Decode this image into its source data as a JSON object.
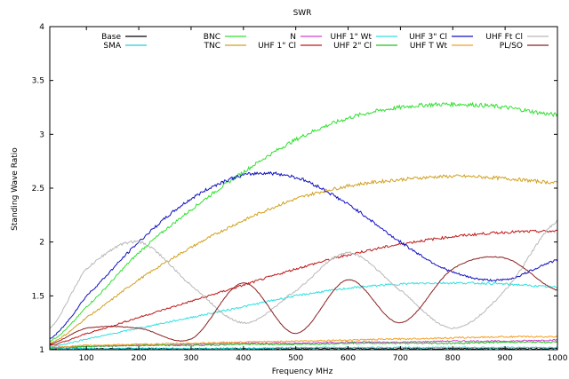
{
  "chart_data": {
    "type": "line",
    "title": "SWR",
    "xlabel": "Frequency MHz",
    "ylabel": "Standing Wave Ratio",
    "xlim": [
      30,
      1000
    ],
    "ylim": [
      1,
      4
    ],
    "x_ticks": [
      100,
      200,
      300,
      400,
      500,
      600,
      700,
      800,
      900,
      1000
    ],
    "y_ticks": [
      "1",
      "1.5",
      "2",
      "2.5",
      "3",
      "3.5",
      "4"
    ],
    "grid": false,
    "legend_position": "top",
    "x": [
      30,
      100,
      200,
      300,
      400,
      500,
      600,
      700,
      800,
      900,
      1000
    ],
    "series": [
      {
        "name": "Base",
        "color": "#000000",
        "values": [
          1.01,
          1.01,
          1.01,
          1.01,
          1.01,
          1.01,
          1.01,
          1.01,
          1.01,
          1.01,
          1.01
        ]
      },
      {
        "name": "SMA",
        "color": "#20d0d0",
        "values": [
          1.01,
          1.01,
          1.01,
          1.01,
          1.01,
          1.02,
          1.02,
          1.02,
          1.02,
          1.02,
          1.02
        ]
      },
      {
        "name": "BNC",
        "color": "#30e030",
        "values": [
          1.08,
          1.4,
          1.9,
          2.3,
          2.65,
          2.95,
          3.15,
          3.25,
          3.28,
          3.25,
          3.18
        ]
      },
      {
        "name": "TNC",
        "color": "#d0a020",
        "values": [
          1.06,
          1.3,
          1.65,
          1.95,
          2.2,
          2.4,
          2.52,
          2.58,
          2.61,
          2.59,
          2.55
        ]
      },
      {
        "name": "N",
        "color": "#d040d0",
        "values": [
          1.02,
          1.03,
          1.04,
          1.05,
          1.06,
          1.06,
          1.07,
          1.07,
          1.08,
          1.08,
          1.09
        ]
      },
      {
        "name": "UHF 1\" Cl",
        "color": "#c01818",
        "values": [
          1.04,
          1.15,
          1.3,
          1.45,
          1.6,
          1.75,
          1.88,
          1.98,
          2.05,
          2.09,
          2.1
        ]
      },
      {
        "name": "UHF 1\" Wt",
        "color": "#30e0e0",
        "values": [
          1.03,
          1.1,
          1.2,
          1.3,
          1.4,
          1.5,
          1.57,
          1.61,
          1.62,
          1.61,
          1.58
        ]
      },
      {
        "name": "UHF 2\" Cl",
        "color": "#20c020",
        "values": [
          1.02,
          1.03,
          1.04,
          1.04,
          1.05,
          1.05,
          1.06,
          1.06,
          1.06,
          1.07,
          1.07
        ]
      },
      {
        "name": "UHF 3\" Cl",
        "color": "#1010c0",
        "values": [
          1.1,
          1.5,
          2.0,
          2.4,
          2.62,
          2.6,
          2.35,
          2.0,
          1.72,
          1.65,
          1.83
        ]
      },
      {
        "name": "UHF T Wt",
        "color": "#f0a020",
        "values": [
          1.02,
          1.04,
          1.05,
          1.06,
          1.07,
          1.08,
          1.09,
          1.1,
          1.11,
          1.12,
          1.12
        ]
      },
      {
        "name": "UHF Ft Cl",
        "color": "#b8b8b8",
        "values": [
          1.2,
          1.75,
          2.0,
          1.6,
          1.25,
          1.55,
          1.9,
          1.55,
          1.2,
          1.55,
          2.2
        ]
      },
      {
        "name": "PL/SO",
        "color": "#8b2020",
        "values": [
          1.05,
          1.2,
          1.2,
          1.1,
          1.62,
          1.15,
          1.65,
          1.25,
          1.75,
          1.85,
          1.55
        ]
      }
    ]
  }
}
